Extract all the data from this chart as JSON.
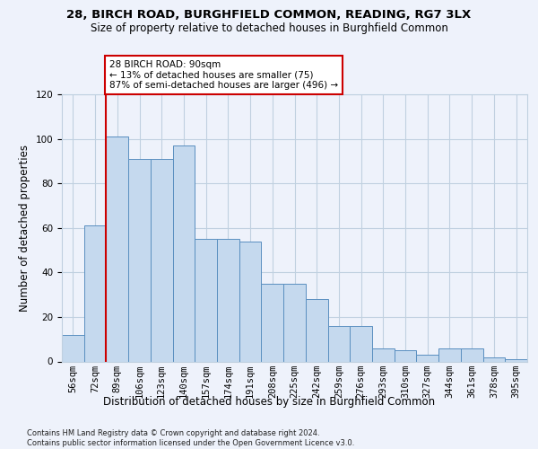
{
  "title1": "28, BIRCH ROAD, BURGHFIELD COMMON, READING, RG7 3LX",
  "title2": "Size of property relative to detached houses in Burghfield Common",
  "xlabel": "Distribution of detached houses by size in Burghfield Common",
  "ylabel": "Number of detached properties",
  "footnote": "Contains HM Land Registry data © Crown copyright and database right 2024.\nContains public sector information licensed under the Open Government Licence v3.0.",
  "bin_labels": [
    "56sqm",
    "72sqm",
    "89sqm",
    "106sqm",
    "123sqm",
    "140sqm",
    "157sqm",
    "174sqm",
    "191sqm",
    "208sqm",
    "225sqm",
    "242sqm",
    "259sqm",
    "276sqm",
    "293sqm",
    "310sqm",
    "327sqm",
    "344sqm",
    "361sqm",
    "378sqm",
    "395sqm"
  ],
  "bar_values": [
    12,
    61,
    101,
    91,
    91,
    97,
    55,
    55,
    54,
    35,
    35,
    28,
    16,
    16,
    6,
    5,
    3,
    6,
    6,
    2,
    1
  ],
  "bar_color": "#c5d9ee",
  "bar_edge_color": "#5a8fc0",
  "grid_color": "#c0d0e0",
  "bg_color": "#eef2fb",
  "vline_x_idx": 2,
  "vline_color": "#cc0000",
  "annotation_line1": "28 BIRCH ROAD: 90sqm",
  "annotation_line2": "← 13% of detached houses are smaller (75)",
  "annotation_line3": "87% of semi-detached houses are larger (496) →",
  "annotation_box_facecolor": "#ffffff",
  "annotation_border_color": "#cc0000",
  "ylim_max": 120,
  "yticks": [
    0,
    20,
    40,
    60,
    80,
    100,
    120
  ],
  "title1_fontsize": 9.5,
  "title2_fontsize": 8.5,
  "xlabel_fontsize": 8.5,
  "ylabel_fontsize": 8.5,
  "tick_fontsize": 7.5,
  "footnote_fontsize": 6.0
}
